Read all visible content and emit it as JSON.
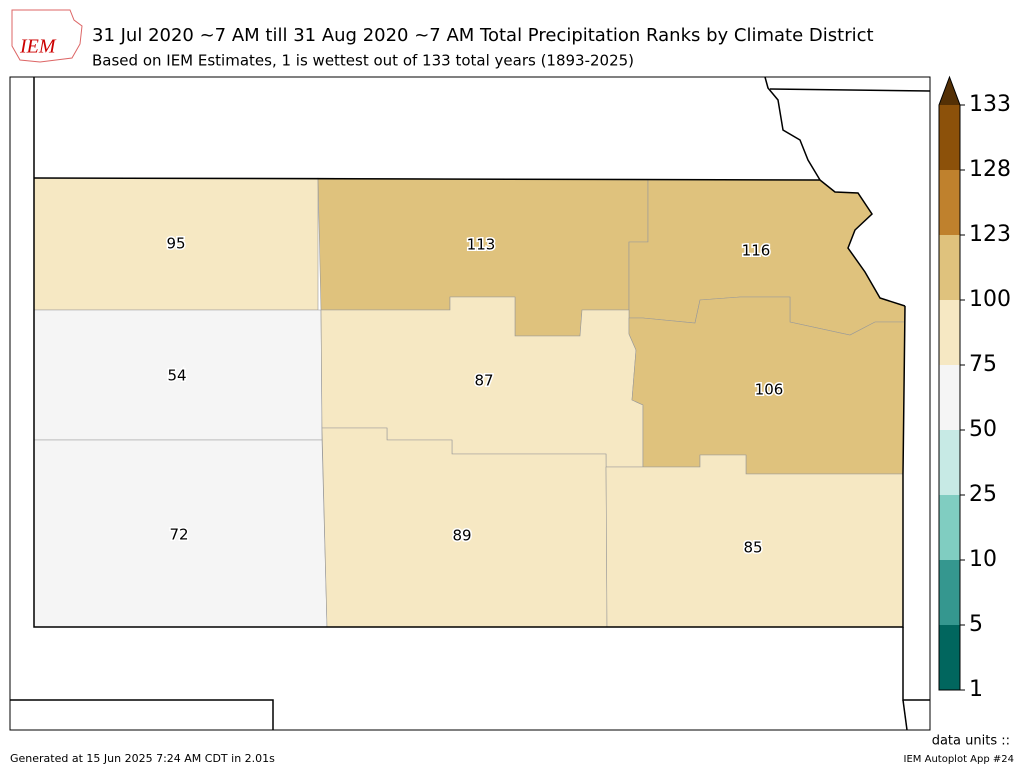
{
  "header": {
    "logo": "IEM",
    "title": "31 Jul 2020 ~7 AM till 31 Aug 2020 ~7 AM Total Precipitation Ranks by Climate District",
    "subtitle": "Based on IEM Estimates, 1 is wettest out of 133 total years (1893-2025)"
  },
  "districts": [
    {
      "value": 95,
      "color": "#f6e8c3"
    },
    {
      "value": 113,
      "color": "#dfc27d"
    },
    {
      "value": 116,
      "color": "#dfc27d"
    },
    {
      "value": 54,
      "color": "#f5f5f5"
    },
    {
      "value": 87,
      "color": "#f6e8c3"
    },
    {
      "value": 106,
      "color": "#dfc27d"
    },
    {
      "value": 72,
      "color": "#f5f5f5"
    },
    {
      "value": 89,
      "color": "#f6e8c3"
    },
    {
      "value": 85,
      "color": "#f6e8c3"
    }
  ],
  "colorbar": {
    "ticks": [
      1,
      5,
      10,
      25,
      50,
      75,
      100,
      123,
      128,
      133
    ],
    "colors": [
      "#01665e",
      "#35978f",
      "#80cdc1",
      "#c7eae5",
      "#f5f5f5",
      "#f6e8c3",
      "#dfc27d",
      "#bf812d",
      "#8c510a"
    ],
    "over_color": "#543005"
  },
  "footer": {
    "generated": "Generated at 15 Jun 2025 7:24 AM CDT in 2.01s",
    "units": "data units ::",
    "app": "IEM Autoplot App #24"
  }
}
